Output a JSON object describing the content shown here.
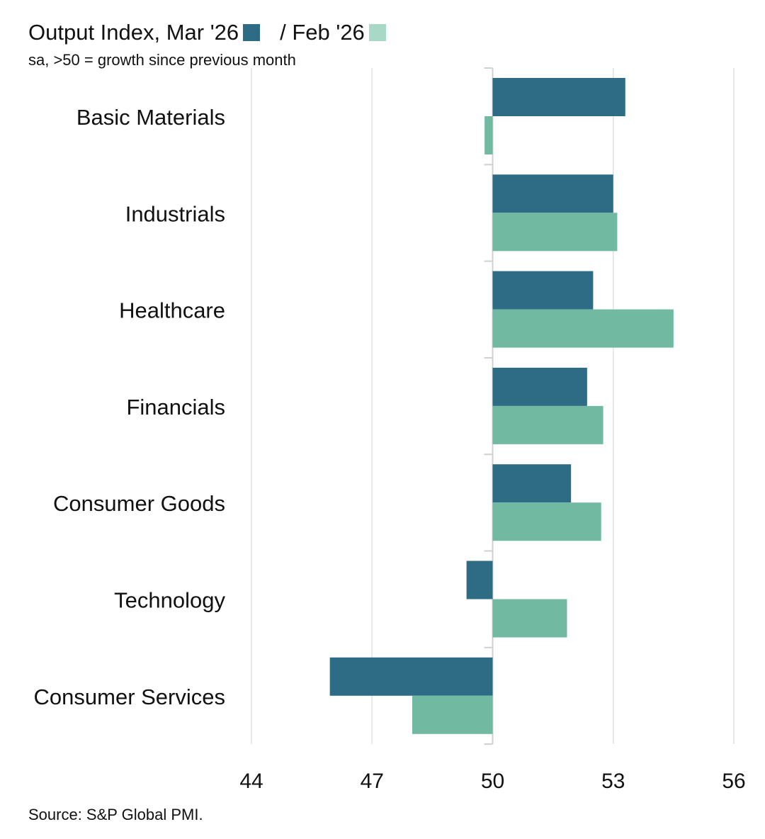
{
  "header": {
    "title_prefix": "Output Index, Mar '26",
    "title_sep": "/ Feb '26",
    "subtitle": "sa, >50 = growth since previous month"
  },
  "footer": {
    "source": "Source: S&P Global PMI."
  },
  "colors": {
    "mar": "#2e6b85",
    "feb": "#72b9a2",
    "feb_legend": "#a8d8c6",
    "grid": "#e2e2e2",
    "axis": "#d0d0d0"
  },
  "chart_data": {
    "type": "bar",
    "orientation": "horizontal",
    "categories": [
      "Basic Materials",
      "Industrials",
      "Healthcare",
      "Financials",
      "Consumer Goods",
      "Technology",
      "Consumer Services"
    ],
    "series": [
      {
        "name": "Mar '26",
        "values": [
          53.3,
          53.0,
          52.5,
          52.35,
          51.95,
          49.35,
          45.95
        ]
      },
      {
        "name": "Feb '26",
        "values": [
          49.8,
          53.1,
          54.5,
          52.75,
          52.7,
          51.85,
          48.0
        ]
      }
    ],
    "baseline": 50,
    "xlim": [
      44,
      56
    ],
    "xticks": [
      "44",
      "47",
      "50",
      "53",
      "56"
    ],
    "grid": true,
    "legend": "title"
  }
}
